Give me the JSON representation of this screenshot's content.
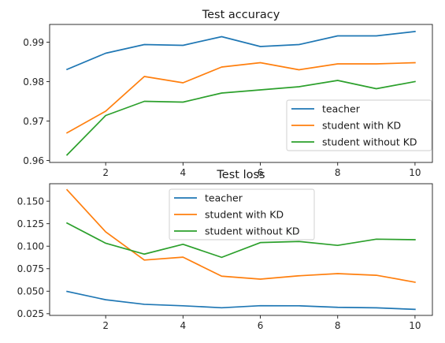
{
  "chart_data": [
    {
      "type": "line",
      "title": "Test accuracy",
      "xlabel": "",
      "ylabel": "",
      "x": [
        1,
        2,
        3,
        4,
        5,
        6,
        7,
        8,
        9,
        10
      ],
      "xlim": [
        0.55,
        10.45
      ],
      "ylim": [
        0.9595,
        0.9945
      ],
      "xticks": [
        2,
        4,
        6,
        8,
        10
      ],
      "xtick_labels": [
        "2",
        "4",
        "6",
        "8",
        "10"
      ],
      "yticks": [
        0.96,
        0.97,
        0.98,
        0.99
      ],
      "ytick_labels": [
        "0.96",
        "0.97",
        "0.98",
        "0.99"
      ],
      "grid": false,
      "legend_position": "lower-right",
      "series": [
        {
          "name": "teacher",
          "color": "#1f77b4",
          "values": [
            0.9831,
            0.9872,
            0.9894,
            0.9892,
            0.9914,
            0.9889,
            0.9894,
            0.9916,
            0.9916,
            0.9927
          ]
        },
        {
          "name": "student with KD",
          "color": "#ff7f0e",
          "values": [
            0.967,
            0.9725,
            0.9813,
            0.9797,
            0.9837,
            0.9848,
            0.983,
            0.9845,
            0.9845,
            0.9848
          ]
        },
        {
          "name": "student without KD",
          "color": "#2ca02c",
          "values": [
            0.9614,
            0.9714,
            0.975,
            0.9748,
            0.9771,
            0.9779,
            0.9787,
            0.9803,
            0.9782,
            0.98
          ]
        }
      ]
    },
    {
      "type": "line",
      "title": "Test loss",
      "xlabel": "",
      "ylabel": "",
      "x": [
        1,
        2,
        3,
        4,
        5,
        6,
        7,
        8,
        9,
        10
      ],
      "xlim": [
        0.55,
        10.45
      ],
      "ylim": [
        0.0231,
        0.1694
      ],
      "xticks": [
        2,
        4,
        6,
        8,
        10
      ],
      "xtick_labels": [
        "2",
        "4",
        "6",
        "8",
        "10"
      ],
      "yticks": [
        0.025,
        0.05,
        0.075,
        0.1,
        0.125,
        0.15
      ],
      "ytick_labels": [
        "0.025",
        "0.050",
        "0.075",
        "0.100",
        "0.125",
        "0.150"
      ],
      "grid": false,
      "legend_position": "upper-center",
      "series": [
        {
          "name": "teacher",
          "color": "#1f77b4",
          "values": [
            0.0497,
            0.0405,
            0.0354,
            0.0338,
            0.0316,
            0.0339,
            0.0338,
            0.0321,
            0.0315,
            0.0298
          ]
        },
        {
          "name": "student with KD",
          "color": "#ff7f0e",
          "values": [
            0.1627,
            0.1159,
            0.0846,
            0.0878,
            0.0667,
            0.0634,
            0.0671,
            0.0695,
            0.0677,
            0.06
          ]
        },
        {
          "name": "student without KD",
          "color": "#2ca02c",
          "values": [
            0.1257,
            0.1033,
            0.0912,
            0.1021,
            0.0876,
            0.104,
            0.1052,
            0.1009,
            0.1078,
            0.1072
          ]
        }
      ]
    }
  ]
}
